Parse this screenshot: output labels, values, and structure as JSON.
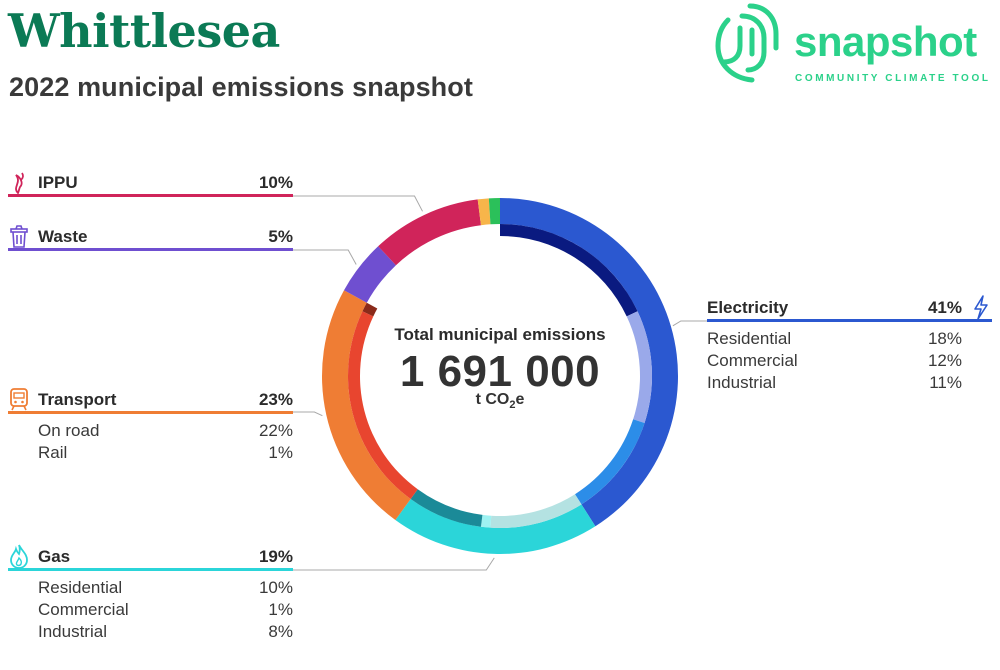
{
  "header": {
    "title": "Whittlesea",
    "subtitle": "2022 municipal emissions snapshot"
  },
  "logo": {
    "word": "snapshot",
    "tagline": "COMMUNITY CLIMATE TOOL",
    "color": "#2bd18a"
  },
  "center": {
    "label": "Total municipal emissions",
    "value": "1 691 000",
    "unit_main": "t CO",
    "unit_sub": "2",
    "unit_end": "e"
  },
  "chart_data": {
    "type": "pie",
    "title": "",
    "total": "1 691 000",
    "unit": "t CO2e",
    "sectors": [
      {
        "name": "Electricity",
        "pct_label": "41%",
        "value": 41,
        "color": "#2b58d0",
        "subsectors": [
          {
            "name": "Residential",
            "pct_label": "18%",
            "value": 18,
            "color": "#0a1a80"
          },
          {
            "name": "Commercial",
            "pct_label": "12%",
            "value": 12,
            "color": "#9aa9ea"
          },
          {
            "name": "Industrial",
            "pct_label": "11%",
            "value": 11,
            "color": "#2c8de8"
          }
        ]
      },
      {
        "name": "Gas",
        "pct_label": "19%",
        "value": 19,
        "color": "#2bd5d9",
        "subsectors": [
          {
            "name": "Residential",
            "pct_label": "10%",
            "value": 10,
            "color": "#b4e2e2"
          },
          {
            "name": "Commercial",
            "pct_label": "1%",
            "value": 1,
            "color": "#9ef2f2"
          },
          {
            "name": "Industrial",
            "pct_label": "8%",
            "value": 8,
            "color": "#1b8a98"
          }
        ]
      },
      {
        "name": "Transport",
        "pct_label": "23%",
        "value": 23,
        "color": "#ef7d34",
        "subsectors": [
          {
            "name": "On road",
            "pct_label": "22%",
            "value": 22,
            "color": "#e8452f"
          },
          {
            "name": "Rail",
            "pct_label": "1%",
            "value": 1,
            "color": "#8a2a1a"
          }
        ]
      },
      {
        "name": "Waste",
        "pct_label": "5%",
        "value": 5,
        "color": "#6f4fd0",
        "subsectors": []
      },
      {
        "name": "IPPU",
        "pct_label": "10%",
        "value": 10,
        "color": "#d0245a",
        "subsectors": []
      },
      {
        "name": "",
        "value": 1,
        "color": "#f7b54a",
        "subsectors": []
      },
      {
        "name": "",
        "value": 1,
        "color": "#2bc05a",
        "subsectors": []
      }
    ]
  },
  "icons": {
    "ippu": "smoke-icon",
    "waste": "bin-icon",
    "transport": "train-icon",
    "gas": "flame-icon",
    "electricity": "lightning-icon"
  }
}
